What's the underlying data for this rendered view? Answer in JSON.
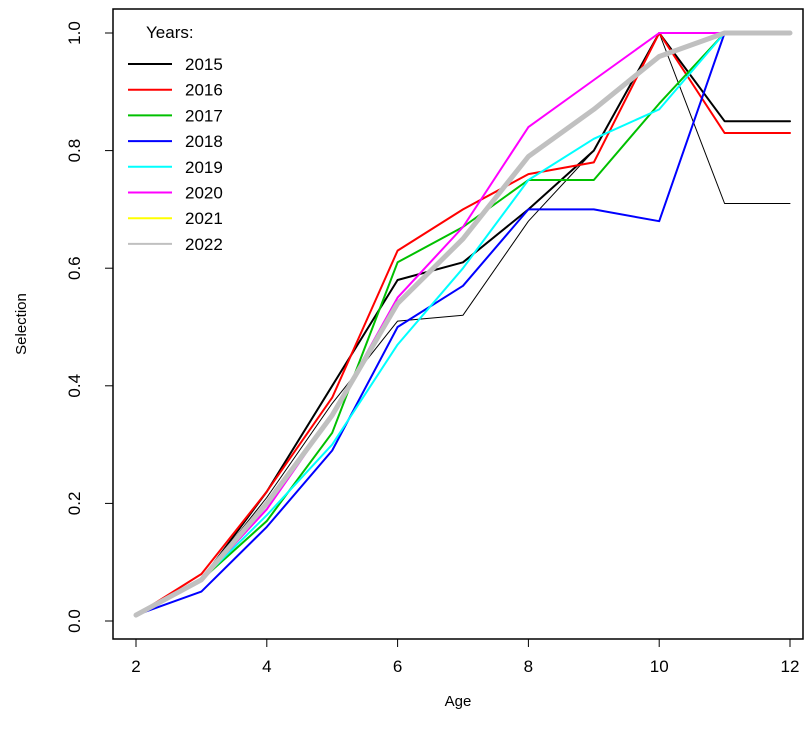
{
  "chart_data": {
    "type": "line",
    "title": "",
    "xlabel": "Age",
    "ylabel": "Selection",
    "xlim": [
      2,
      12
    ],
    "ylim": [
      0,
      1
    ],
    "xticks": [
      2,
      4,
      6,
      8,
      10,
      12
    ],
    "yticks": [
      "0.0",
      "0.2",
      "0.4",
      "0.6",
      "0.8",
      "1.0"
    ],
    "grid": false,
    "legend": {
      "title": "Years:",
      "placement": "top-left"
    },
    "x": [
      2,
      3,
      4,
      5,
      6,
      7,
      8,
      9,
      10,
      11,
      12
    ],
    "series": [
      {
        "name": "2015",
        "color": "#000000",
        "values": [
          0.01,
          0.07,
          0.21,
          0.37,
          0.51,
          0.52,
          0.68,
          0.8,
          1.0,
          0.71,
          0.71
        ]
      },
      {
        "name": "2015",
        "color": "#000000",
        "values": [
          0.01,
          0.07,
          0.22,
          0.4,
          0.58,
          0.61,
          0.7,
          0.8,
          1.0,
          0.85,
          0.85
        ]
      },
      {
        "name": "2016",
        "color": "#ff0000",
        "values": [
          0.01,
          0.08,
          0.22,
          0.38,
          0.63,
          0.7,
          0.76,
          0.78,
          1.0,
          0.83,
          0.83
        ]
      },
      {
        "name": "2017",
        "color": "#00c000",
        "values": [
          0.01,
          0.07,
          0.17,
          0.32,
          0.61,
          0.67,
          0.75,
          0.75,
          0.88,
          1.0,
          1.0
        ]
      },
      {
        "name": "2018",
        "color": "#0000ff",
        "values": [
          0.01,
          0.05,
          0.16,
          0.29,
          0.5,
          0.57,
          0.7,
          0.7,
          0.68,
          1.0,
          1.0
        ]
      },
      {
        "name": "2019",
        "color": "#00ffff",
        "values": [
          0.01,
          0.07,
          0.18,
          0.3,
          0.47,
          0.6,
          0.75,
          0.82,
          0.87,
          1.0,
          1.0
        ]
      },
      {
        "name": "2020",
        "color": "#ff00ff",
        "values": [
          0.01,
          0.07,
          0.19,
          0.35,
          0.55,
          0.67,
          0.84,
          0.92,
          1.0,
          1.0,
          1.0
        ]
      },
      {
        "name": "2021",
        "color": "#ffff00",
        "values": [
          0.01,
          0.07,
          0.2,
          0.35,
          0.54,
          0.65,
          0.79,
          0.87,
          0.96,
          1.0,
          1.0
        ]
      },
      {
        "name": "2022",
        "color": "#c0c0c0",
        "values": [
          0.01,
          0.07,
          0.2,
          0.35,
          0.54,
          0.65,
          0.79,
          0.87,
          0.96,
          1.0,
          1.0
        ]
      }
    ]
  }
}
